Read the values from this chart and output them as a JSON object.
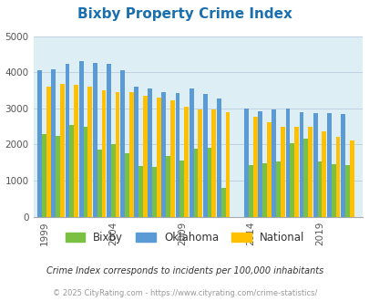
{
  "title": "Bixby Property Crime Index",
  "title_color": "#1a6faf",
  "years": [
    1999,
    2000,
    2001,
    2002,
    2003,
    2004,
    2005,
    2006,
    2007,
    2008,
    2009,
    2010,
    2011,
    2012,
    2014,
    2015,
    2016,
    2017,
    2018,
    2019,
    2020,
    2021
  ],
  "bixby": [
    2300,
    2250,
    2550,
    2480,
    1850,
    2000,
    1750,
    1400,
    1380,
    1680,
    1550,
    1880,
    1900,
    800,
    1420,
    1480,
    1540,
    2030,
    2150,
    1530,
    1460,
    1440
  ],
  "oklahoma": [
    4050,
    4070,
    4230,
    4320,
    4250,
    4230,
    4060,
    3600,
    3550,
    3460,
    3430,
    3550,
    3390,
    3280,
    3000,
    2930,
    2960,
    3000,
    2890,
    2880,
    2860,
    2840
  ],
  "national": [
    3600,
    3680,
    3660,
    3590,
    3500,
    3450,
    3440,
    3360,
    3290,
    3220,
    3050,
    2960,
    2960,
    2890,
    2760,
    2610,
    2500,
    2490,
    2480,
    2370,
    2220,
    2120
  ],
  "bixby_color": "#7ac143",
  "oklahoma_color": "#5b9bd5",
  "national_color": "#ffc000",
  "bg_color": "#ddeef5",
  "ylim": [
    0,
    5000
  ],
  "yticks": [
    0,
    1000,
    2000,
    3000,
    4000,
    5000
  ],
  "xtick_labels": [
    "1999",
    "2004",
    "2009",
    "2014",
    "2019"
  ],
  "xtick_positions": [
    1999,
    2004,
    2009,
    2014,
    2019
  ],
  "footnote1": "Crime Index corresponds to incidents per 100,000 inhabitants",
  "footnote2": "© 2025 CityRating.com - https://www.cityrating.com/crime-statistics/",
  "footnote1_color": "#333333",
  "footnote2_color": "#999999",
  "bar_width": 0.32,
  "legend_labels": [
    "Bixby",
    "Oklahoma",
    "National"
  ],
  "grid_color": "#bbccdd"
}
